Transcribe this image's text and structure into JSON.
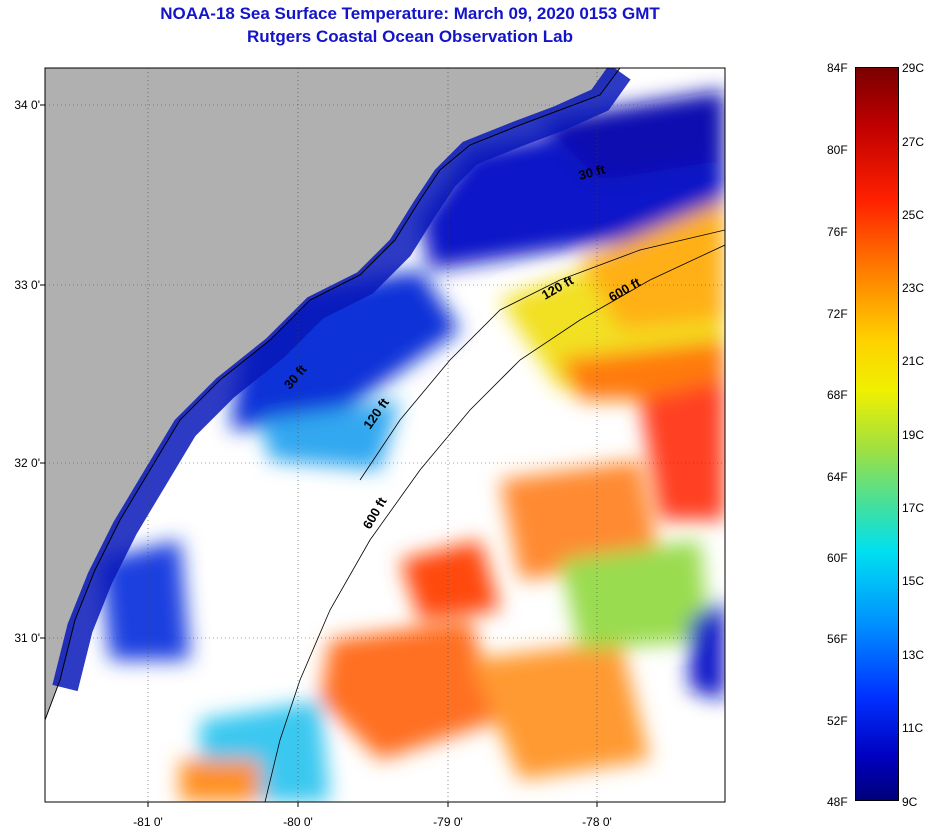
{
  "header": {
    "title": "NOAA-18 Sea Surface Temperature:  March 09, 2020 0153 GMT",
    "subtitle": "Rutgers Coastal Ocean Observation Lab"
  },
  "map": {
    "latitude_labels": [
      "34 0'",
      "33 0'",
      "32 0'",
      "31 0'"
    ],
    "longitude_labels": [
      "-81 0'",
      "-80 0'",
      "-79 0'",
      "-78 0'"
    ],
    "isobath_labels": [
      "30 ft",
      "120 ft",
      "600 ft",
      "30 ft",
      "120 ft",
      "600 ft"
    ],
    "colors": {
      "land": "#b0b0b0",
      "cloud": "#ffffff",
      "coastline": "#000000"
    }
  },
  "colorbar": {
    "fahrenheit_labels": [
      "84F",
      "80F",
      "76F",
      "72F",
      "68F",
      "64F",
      "60F",
      "56F",
      "52F",
      "48F"
    ],
    "celsius_labels": [
      "29C",
      "27C",
      "25C",
      "23C",
      "21C",
      "19C",
      "17C",
      "15C",
      "13C",
      "11C",
      "9C"
    ]
  }
}
